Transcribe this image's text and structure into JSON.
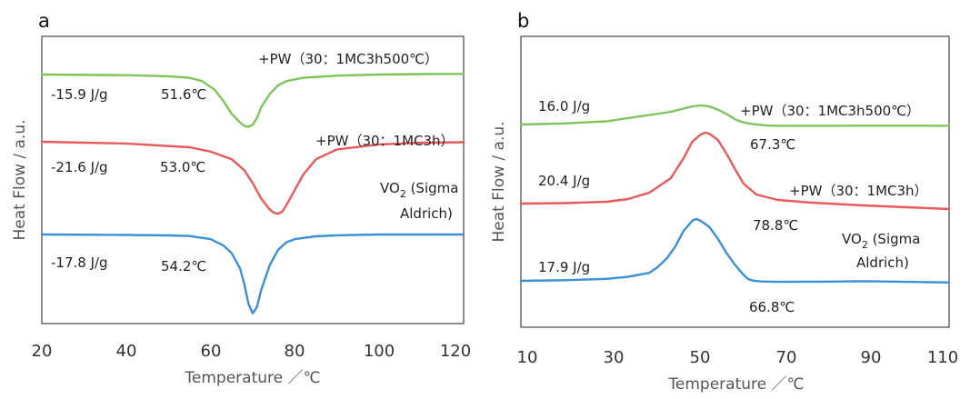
{
  "chart_data": [
    {
      "panel": "a",
      "type": "line",
      "xlabel": "Temperature ／℃",
      "ylabel": "Heat Flow / a.u.",
      "xlim": [
        20,
        120
      ],
      "xticks": [
        "20",
        "40",
        "60",
        "80",
        "100",
        "120"
      ],
      "series": [
        {
          "name": "+PW（30：1MC3h500℃）",
          "color": "#7dc45a",
          "x": [
            20,
            40,
            50,
            55,
            58,
            61,
            63,
            65,
            67,
            68,
            69,
            70,
            71,
            72,
            74,
            76,
            78,
            82,
            90,
            100,
            110,
            120
          ],
          "y": [
            0.0,
            -0.3,
            -0.8,
            -1.5,
            -3,
            -7,
            -12,
            -18,
            -22,
            -23.5,
            -24,
            -23,
            -20,
            -15,
            -9,
            -5,
            -3,
            -1.5,
            -0.5,
            0.0,
            0.2,
            0.3
          ]
        },
        {
          "name": "+PW（30：1MC3h）",
          "color": "#e8595a",
          "x": [
            20,
            40,
            55,
            60,
            65,
            68,
            70,
            72,
            74,
            75,
            76,
            77,
            78,
            80,
            82,
            85,
            90,
            100,
            110,
            120
          ],
          "y": [
            0.0,
            -0.8,
            -2.5,
            -4.5,
            -8,
            -13,
            -19,
            -26,
            -31,
            -32.5,
            -33,
            -32,
            -29,
            -22,
            -15,
            -8,
            -3.5,
            -1.2,
            -0.4,
            -0.2
          ]
        },
        {
          "name": "VO₂ (Sigma Aldrich)",
          "color": "#3b8fd4",
          "x": [
            20,
            40,
            50,
            55,
            60,
            63,
            65,
            67,
            68,
            69,
            70,
            71,
            72,
            74,
            76,
            78,
            80,
            85,
            90,
            100,
            110,
            120
          ],
          "y": [
            0.0,
            -0.3,
            -0.6,
            -1,
            -3,
            -7,
            -12,
            -22,
            -32,
            -45,
            -51,
            -47,
            -36,
            -20,
            -10,
            -5,
            -3,
            -1.2,
            -0.5,
            0.0,
            0.0,
            0.0
          ]
        }
      ],
      "annotations": [
        {
          "text": "-15.9 J/g",
          "series": 0
        },
        {
          "text": "51.6℃",
          "series": 0
        },
        {
          "text": "-21.6 J/g",
          "series": 1
        },
        {
          "text": "53.0℃",
          "series": 1
        },
        {
          "text": "-17.8 J/g",
          "series": 2
        },
        {
          "text": "54.2℃",
          "series": 2
        }
      ]
    },
    {
      "panel": "b",
      "type": "line",
      "xlabel": "Temperature ／℃",
      "ylabel": "Heat Flow / a.u.",
      "xlim": [
        10,
        110
      ],
      "xticks": [
        "10",
        "30",
        "50",
        "70",
        "90",
        "110"
      ],
      "series": [
        {
          "name": "+PW（30：1MC3h500℃）",
          "color": "#7dc45a",
          "x": [
            10,
            20,
            30,
            35,
            40,
            45,
            48,
            50,
            52,
            54,
            56,
            58,
            60,
            62,
            64,
            67,
            70,
            80,
            90,
            100,
            110
          ],
          "y": [
            0.0,
            1,
            3,
            6,
            9,
            12,
            15,
            17,
            18,
            17,
            14,
            10,
            5,
            2,
            0.5,
            -0.8,
            -1.2,
            -1.2,
            -1.1,
            -1.1,
            -1.2
          ]
        },
        {
          "name": "+PW（30：1MC3h）",
          "color": "#e8595a",
          "x": [
            10,
            20,
            30,
            35,
            40,
            45,
            48,
            50,
            52,
            53,
            54,
            56,
            58,
            60,
            62,
            65,
            70,
            78,
            90,
            100,
            110
          ],
          "y": [
            0.0,
            0.5,
            2,
            5,
            12,
            28,
            50,
            68,
            76,
            78,
            77,
            70,
            55,
            38,
            22,
            10,
            4,
            1,
            -2,
            -4,
            -6
          ]
        },
        {
          "name": "VO₂ (Sigma Aldrich)",
          "color": "#3b8fd4",
          "x": [
            10,
            20,
            30,
            35,
            40,
            42,
            44,
            46,
            48,
            50,
            51,
            52,
            54,
            56,
            58,
            60,
            62,
            63,
            64,
            66,
            70,
            80,
            90,
            100,
            110
          ],
          "y": [
            0.0,
            0.3,
            1,
            2,
            4,
            7,
            11,
            17,
            25,
            30,
            31,
            30,
            27,
            21,
            14,
            8,
            3,
            1,
            0.2,
            -0.3,
            -0.5,
            -0.4,
            -0.2,
            -0.5,
            -0.8
          ]
        }
      ],
      "annotations": [
        {
          "text": "16.0 J/g",
          "series": 0
        },
        {
          "text": "67.3℃",
          "series": 0
        },
        {
          "text": "20.4 J/g",
          "series": 1
        },
        {
          "text": "78.8℃",
          "series": 1
        },
        {
          "text": "17.9 J/g",
          "series": 2
        },
        {
          "text": "66.8℃",
          "series": 2
        }
      ]
    }
  ]
}
